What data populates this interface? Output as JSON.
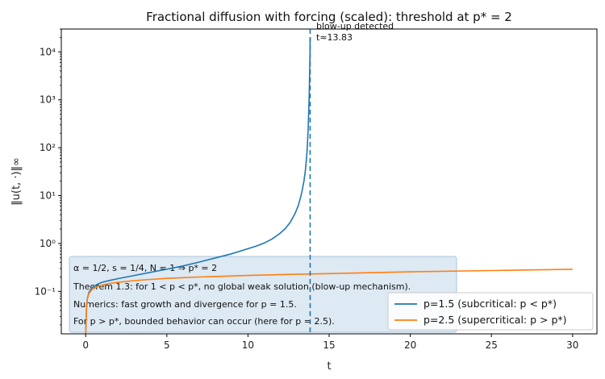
{
  "chart_data": {
    "type": "line",
    "title": "Fractional diffusion with forcing (scaled): threshold at p* = 2",
    "xlabel": "t",
    "ylabel": "‖u(t, ·)‖∞",
    "xlim": [
      -1.5,
      31.5
    ],
    "ylim": [
      0.013,
      30000
    ],
    "yscale": "log",
    "xticks": [
      0,
      5,
      10,
      15,
      20,
      25,
      30
    ],
    "yticks": [
      {
        "value": 0.1,
        "label": "10⁻¹"
      },
      {
        "value": 1,
        "label": "10⁰"
      },
      {
        "value": 10,
        "label": "10¹"
      },
      {
        "value": 100,
        "label": "10²"
      },
      {
        "value": 1000,
        "label": "10³"
      },
      {
        "value": 10000,
        "label": "10⁴"
      }
    ],
    "grid": false,
    "legend_position": "bottom-right",
    "series": [
      {
        "name": "p=1.5  (subcritical: p < p*)",
        "color": "#1f77b4",
        "x": [
          0,
          0.05,
          0.1,
          0.2,
          0.4,
          0.7,
          1,
          1.5,
          2,
          3,
          4,
          5,
          6,
          7,
          8,
          9,
          10,
          10.5,
          11,
          11.5,
          12,
          12.3,
          12.6,
          12.9,
          13.1,
          13.3,
          13.45,
          13.55,
          13.65,
          13.72,
          13.77,
          13.8,
          13.82,
          13.83
        ],
        "values": [
          0.013,
          0.045,
          0.07,
          0.095,
          0.12,
          0.14,
          0.155,
          0.17,
          0.185,
          0.215,
          0.25,
          0.29,
          0.34,
          0.41,
          0.5,
          0.61,
          0.78,
          0.88,
          1.02,
          1.25,
          1.65,
          2.05,
          2.75,
          4.2,
          6.2,
          11,
          20,
          36,
          90,
          300,
          1200,
          4000,
          9000,
          20000
        ]
      },
      {
        "name": "p=2.5  (supercritical: p > p*)",
        "color": "#ff7f0e",
        "x": [
          0,
          0.05,
          0.1,
          0.2,
          0.4,
          0.7,
          1,
          1.5,
          2,
          3,
          4,
          5,
          7,
          10,
          13,
          15,
          20,
          25,
          30
        ],
        "values": [
          0.013,
          0.045,
          0.068,
          0.09,
          0.11,
          0.125,
          0.135,
          0.147,
          0.155,
          0.168,
          0.178,
          0.187,
          0.2,
          0.215,
          0.228,
          0.235,
          0.256,
          0.272,
          0.29
        ]
      }
    ],
    "vline": {
      "x": 13.83,
      "color": "#1f77b4",
      "style": "dashed"
    },
    "annotations": {
      "blowup_line1": "blow-up detected",
      "blowup_line2": "t≈13.83",
      "box_line1": "α = 1/2,  s = 1/4,  N = 1 ⇒ p* = 2",
      "box_line2": "Theorem 1.3: for 1 < p < p*, no global weak solution (blow-up mechanism).",
      "box_line3": "Numerics: fast growth and divergence for p = 1.5.",
      "box_line4": "For p > p*, bounded behavior can occur (here for p = 2.5)."
    }
  }
}
